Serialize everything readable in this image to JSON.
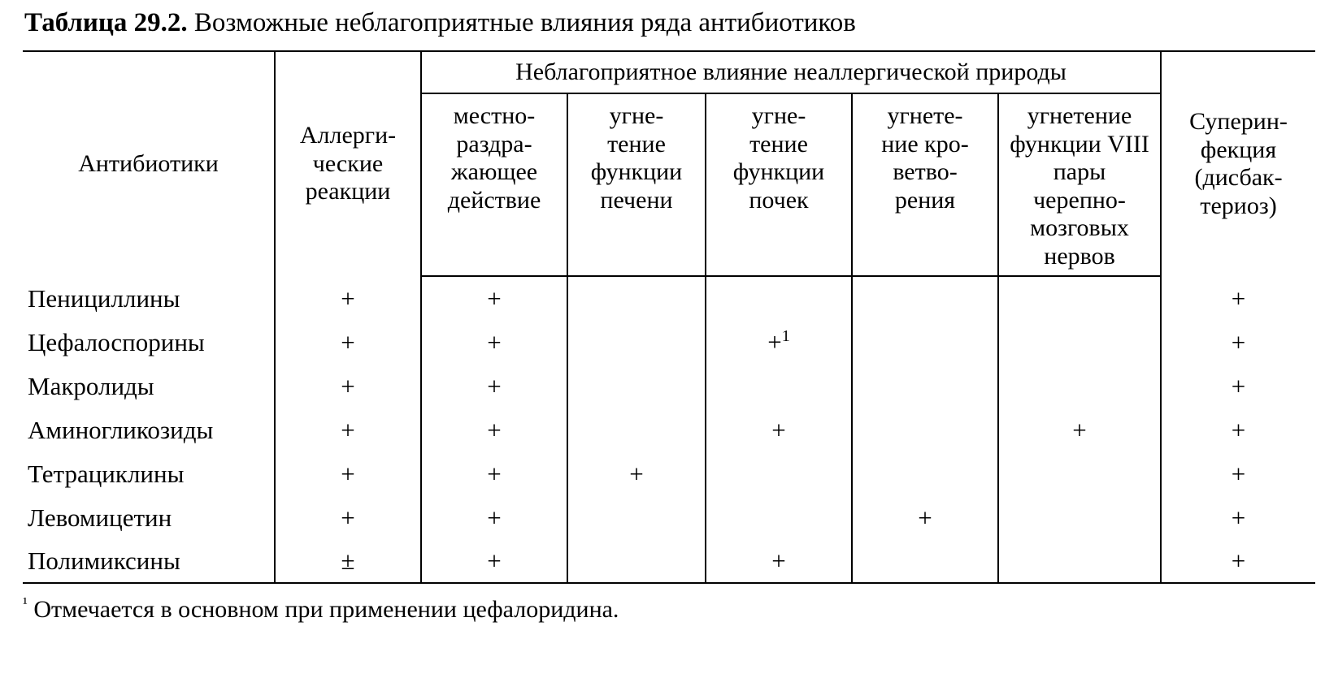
{
  "caption_label": "Таблица 29.2.",
  "caption_text": "Возможные неблагоприятные влияния ряда антибиотиков",
  "header": {
    "antibiotics": "Антибиотики",
    "allergic": "Аллерги-\nческие реакции",
    "group": "Неблагоприятное влияние неаллергической природы",
    "sub": {
      "local": "местно-\nраздра-\nжающее действие",
      "liver": "угне-\nтение функции печени",
      "kidney": "угне-\nтение функции почек",
      "blood": "угнете-\nние кро-\nветво-\nрения",
      "nerve": "угнетение функции VIII пары черепно-\nмозговых нервов"
    },
    "super": "Суперин-\nфекция (дисбак-\nтериоз)"
  },
  "rows": [
    {
      "name": "Пенициллины",
      "c": [
        "+",
        "+",
        "",
        "",
        "",
        "",
        "+"
      ]
    },
    {
      "name": "Цефалоспорины",
      "c": [
        "+",
        "+",
        "",
        "+¹",
        "",
        "",
        "+"
      ]
    },
    {
      "name": "Макролиды",
      "c": [
        "+",
        "+",
        "",
        "",
        "",
        "",
        "+"
      ]
    },
    {
      "name": "Аминогликозиды",
      "c": [
        "+",
        "+",
        "",
        "+",
        "",
        "+",
        "+"
      ]
    },
    {
      "name": "Тетрациклины",
      "c": [
        "+",
        "+",
        "+",
        "",
        "",
        "",
        "+"
      ]
    },
    {
      "name": "Левомицетин",
      "c": [
        "+",
        "+",
        "",
        "",
        "+",
        "",
        "+"
      ]
    },
    {
      "name": "Полимиксины",
      "c": [
        "±",
        "+",
        "",
        "+",
        "",
        "",
        "+"
      ]
    }
  ],
  "footnote_marker": "¹",
  "footnote_text": "Отмечается в основном при применении цефалоридина."
}
